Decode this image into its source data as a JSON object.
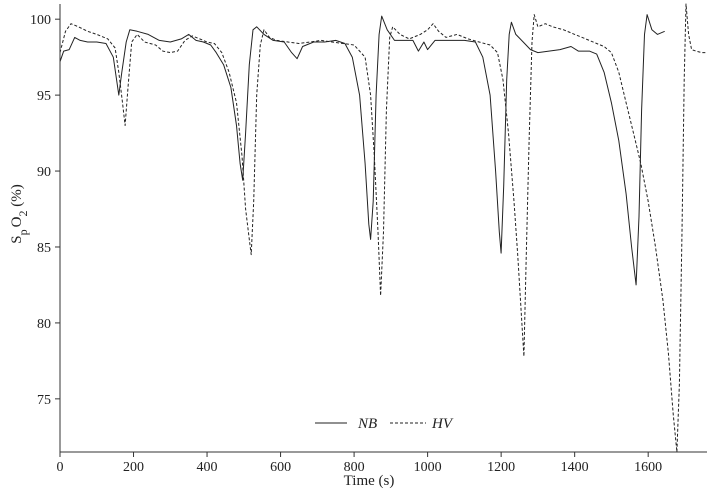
{
  "chart_data": {
    "type": "line",
    "xlabel": "Time (s)",
    "ylabel": {
      "main": "S",
      "sub1": "p",
      "mid": "O",
      "sub2": "2",
      "unit": " (%)"
    },
    "xlim": [
      0,
      1760
    ],
    "ylim": [
      71.5,
      101
    ],
    "xticks": [
      0,
      200,
      400,
      600,
      800,
      1000,
      1200,
      1400,
      1600
    ],
    "yticks": [
      75,
      80,
      85,
      90,
      95,
      100
    ],
    "grid": false,
    "legend_position": "bottom-center",
    "series": [
      {
        "name": "NB",
        "style": "solid",
        "color": "#222222",
        "points": [
          [
            0,
            97.2
          ],
          [
            10,
            97.9
          ],
          [
            25,
            98.0
          ],
          [
            40,
            98.8
          ],
          [
            55,
            98.6
          ],
          [
            75,
            98.5
          ],
          [
            100,
            98.5
          ],
          [
            125,
            98.4
          ],
          [
            145,
            97.5
          ],
          [
            160,
            95.0
          ],
          [
            168,
            96.5
          ],
          [
            180,
            98.5
          ],
          [
            190,
            99.3
          ],
          [
            210,
            99.2
          ],
          [
            240,
            99.0
          ],
          [
            270,
            98.6
          ],
          [
            300,
            98.5
          ],
          [
            330,
            98.7
          ],
          [
            350,
            99.0
          ],
          [
            370,
            98.6
          ],
          [
            390,
            98.5
          ],
          [
            410,
            98.3
          ],
          [
            425,
            97.8
          ],
          [
            445,
            97.0
          ],
          [
            465,
            95.5
          ],
          [
            480,
            93.0
          ],
          [
            490,
            90.5
          ],
          [
            497,
            89.4
          ],
          [
            505,
            92.5
          ],
          [
            515,
            97.0
          ],
          [
            525,
            99.3
          ],
          [
            535,
            99.5
          ],
          [
            555,
            99.0
          ],
          [
            580,
            98.6
          ],
          [
            610,
            98.5
          ],
          [
            630,
            97.8
          ],
          [
            645,
            97.4
          ],
          [
            660,
            98.2
          ],
          [
            690,
            98.5
          ],
          [
            720,
            98.5
          ],
          [
            750,
            98.6
          ],
          [
            775,
            98.4
          ],
          [
            795,
            97.5
          ],
          [
            815,
            95.0
          ],
          [
            830,
            90.5
          ],
          [
            840,
            86.5
          ],
          [
            845,
            85.5
          ],
          [
            852,
            88.0
          ],
          [
            860,
            95.0
          ],
          [
            868,
            99.0
          ],
          [
            875,
            100.2
          ],
          [
            890,
            99.3
          ],
          [
            910,
            98.6
          ],
          [
            940,
            98.6
          ],
          [
            960,
            98.6
          ],
          [
            975,
            97.9
          ],
          [
            990,
            98.5
          ],
          [
            1000,
            98.0
          ],
          [
            1020,
            98.6
          ],
          [
            1060,
            98.6
          ],
          [
            1100,
            98.6
          ],
          [
            1130,
            98.5
          ],
          [
            1150,
            97.5
          ],
          [
            1170,
            95.0
          ],
          [
            1185,
            90.0
          ],
          [
            1195,
            86.0
          ],
          [
            1200,
            84.6
          ],
          [
            1207,
            89.0
          ],
          [
            1215,
            96.0
          ],
          [
            1222,
            99.0
          ],
          [
            1228,
            99.8
          ],
          [
            1240,
            99.0
          ],
          [
            1260,
            98.5
          ],
          [
            1280,
            98.0
          ],
          [
            1300,
            97.8
          ],
          [
            1330,
            97.9
          ],
          [
            1360,
            98.0
          ],
          [
            1390,
            98.2
          ],
          [
            1410,
            97.9
          ],
          [
            1440,
            97.9
          ],
          [
            1460,
            97.7
          ],
          [
            1480,
            96.5
          ],
          [
            1500,
            94.5
          ],
          [
            1520,
            92.0
          ],
          [
            1540,
            88.5
          ],
          [
            1555,
            85.0
          ],
          [
            1567,
            82.5
          ],
          [
            1575,
            87.0
          ],
          [
            1582,
            94.0
          ],
          [
            1590,
            99.0
          ],
          [
            1597,
            100.3
          ],
          [
            1610,
            99.3
          ],
          [
            1625,
            99.0
          ],
          [
            1645,
            99.2
          ]
        ]
      },
      {
        "name": "HV",
        "style": "dashed",
        "color": "#222222",
        "points": [
          [
            0,
            97.8
          ],
          [
            15,
            99.2
          ],
          [
            30,
            99.7
          ],
          [
            50,
            99.5
          ],
          [
            75,
            99.2
          ],
          [
            100,
            99.0
          ],
          [
            130,
            98.7
          ],
          [
            150,
            98.1
          ],
          [
            160,
            96.5
          ],
          [
            170,
            94.5
          ],
          [
            177,
            93.0
          ],
          [
            185,
            95.5
          ],
          [
            195,
            98.5
          ],
          [
            210,
            99.0
          ],
          [
            230,
            98.5
          ],
          [
            260,
            98.3
          ],
          [
            280,
            97.9
          ],
          [
            300,
            97.8
          ],
          [
            320,
            97.9
          ],
          [
            340,
            98.6
          ],
          [
            360,
            98.9
          ],
          [
            380,
            98.7
          ],
          [
            400,
            98.5
          ],
          [
            420,
            98.4
          ],
          [
            440,
            97.8
          ],
          [
            460,
            96.5
          ],
          [
            480,
            94.5
          ],
          [
            495,
            91.0
          ],
          [
            505,
            87.5
          ],
          [
            515,
            85.5
          ],
          [
            520,
            84.5
          ],
          [
            527,
            88.0
          ],
          [
            535,
            95.0
          ],
          [
            545,
            98.3
          ],
          [
            555,
            99.3
          ],
          [
            570,
            98.8
          ],
          [
            590,
            98.6
          ],
          [
            620,
            98.5
          ],
          [
            650,
            98.4
          ],
          [
            680,
            98.5
          ],
          [
            710,
            98.6
          ],
          [
            740,
            98.5
          ],
          [
            770,
            98.4
          ],
          [
            800,
            98.3
          ],
          [
            830,
            97.5
          ],
          [
            845,
            95.0
          ],
          [
            855,
            91.0
          ],
          [
            865,
            86.0
          ],
          [
            872,
            81.8
          ],
          [
            880,
            86.0
          ],
          [
            888,
            94.0
          ],
          [
            897,
            98.8
          ],
          [
            905,
            99.5
          ],
          [
            925,
            99.0
          ],
          [
            950,
            98.7
          ],
          [
            980,
            99.0
          ],
          [
            1000,
            99.3
          ],
          [
            1015,
            99.7
          ],
          [
            1030,
            99.2
          ],
          [
            1050,
            98.8
          ],
          [
            1080,
            99.0
          ],
          [
            1110,
            98.7
          ],
          [
            1140,
            98.5
          ],
          [
            1170,
            98.3
          ],
          [
            1190,
            97.8
          ],
          [
            1205,
            96.0
          ],
          [
            1220,
            92.5
          ],
          [
            1235,
            88.0
          ],
          [
            1245,
            84.5
          ],
          [
            1255,
            80.5
          ],
          [
            1262,
            77.8
          ],
          [
            1268,
            84.0
          ],
          [
            1276,
            92.0
          ],
          [
            1284,
            98.5
          ],
          [
            1290,
            100.3
          ],
          [
            1300,
            99.5
          ],
          [
            1320,
            99.7
          ],
          [
            1340,
            99.5
          ],
          [
            1370,
            99.3
          ],
          [
            1400,
            99.0
          ],
          [
            1430,
            98.7
          ],
          [
            1460,
            98.4
          ],
          [
            1480,
            98.2
          ],
          [
            1500,
            97.8
          ],
          [
            1520,
            96.5
          ],
          [
            1540,
            94.5
          ],
          [
            1560,
            92.5
          ],
          [
            1580,
            90.5
          ],
          [
            1600,
            88.0
          ],
          [
            1620,
            85.0
          ],
          [
            1640,
            81.5
          ],
          [
            1655,
            78.0
          ],
          [
            1668,
            74.0
          ],
          [
            1678,
            71.5
          ],
          [
            1685,
            76.0
          ],
          [
            1692,
            86.0
          ],
          [
            1698,
            96.0
          ],
          [
            1703,
            101.0
          ],
          [
            1710,
            99.0
          ],
          [
            1718,
            98.0
          ],
          [
            1730,
            97.9
          ],
          [
            1745,
            97.8
          ],
          [
            1760,
            97.8
          ]
        ]
      }
    ]
  }
}
